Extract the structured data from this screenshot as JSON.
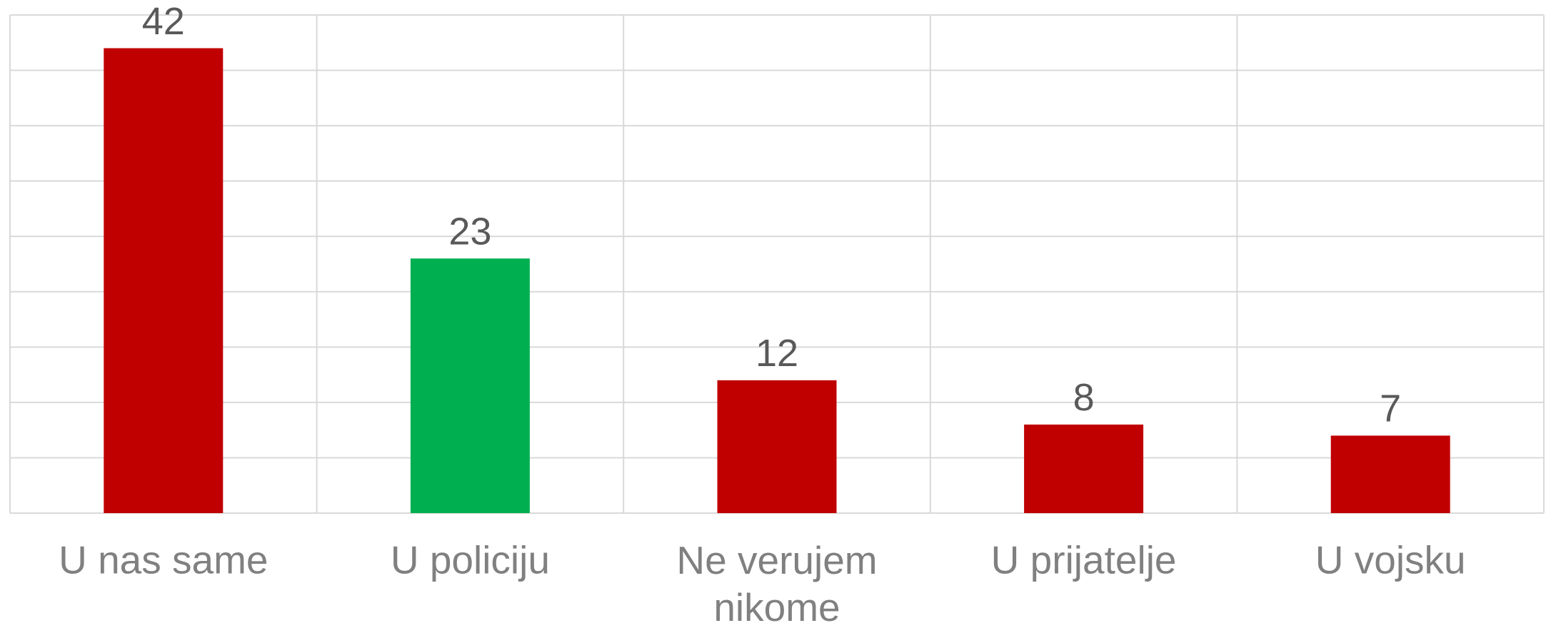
{
  "chart_data": {
    "type": "bar",
    "categories": [
      "U nas same",
      "U policiju",
      "Ne verujem nikome",
      "U prijatelje",
      "U vojsku"
    ],
    "values": [
      42,
      23,
      12,
      8,
      7
    ],
    "colors": [
      "#c00000",
      "#00b050",
      "#c00000",
      "#c00000",
      "#c00000"
    ],
    "ylim": [
      0,
      45
    ],
    "yticks": [
      0,
      5,
      10,
      15,
      20,
      25,
      30,
      35,
      40,
      45
    ],
    "grid": true
  }
}
